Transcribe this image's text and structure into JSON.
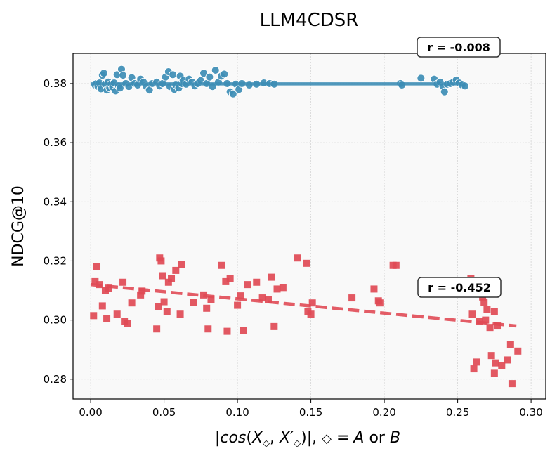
{
  "chart_data": {
    "type": "scatter",
    "title": "LLM4CDSR",
    "ylabel": "NDCG@10",
    "xlabel": {
      "prefix": "|",
      "func": "cos",
      "open": "(",
      "x1": "X",
      "sub1": "◇",
      "comma": ", ",
      "x2": "X′",
      "sub2": "◇",
      "close": ")|,",
      "spacer": " ",
      "diamond": "◇",
      "eq": " =",
      "a": "A",
      "or": " or ",
      "b": "B"
    },
    "xlim": [
      -0.012,
      0.31
    ],
    "ylim": [
      0.2733,
      0.3902
    ],
    "xticks": [
      0.0,
      0.05,
      0.1,
      0.15,
      0.2,
      0.25,
      0.3
    ],
    "xtick_labels": [
      "0.00",
      "0.05",
      "0.10",
      "0.15",
      "0.20",
      "0.25",
      "0.30"
    ],
    "yticks": [
      0.28,
      0.3,
      0.32,
      0.34,
      0.36,
      0.38
    ],
    "ytick_labels": [
      "0.28",
      "0.30",
      "0.32",
      "0.34",
      "0.36",
      "0.38"
    ],
    "grid": true,
    "series": [
      {
        "name": "blue",
        "color": "#3d8db5",
        "marker": "circle",
        "trend": {
          "x": [
            0.0,
            0.255
          ],
          "y": [
            0.3799,
            0.3799
          ],
          "style": "solid"
        },
        "annotation": "r = -0.008",
        "points": [
          [
            0.003,
            0.3795
          ],
          [
            0.004,
            0.38
          ],
          [
            0.005,
            0.379
          ],
          [
            0.006,
            0.3802
          ],
          [
            0.007,
            0.3782
          ],
          [
            0.008,
            0.3828
          ],
          [
            0.009,
            0.3835
          ],
          [
            0.01,
            0.3798
          ],
          [
            0.011,
            0.3778
          ],
          [
            0.012,
            0.3805
          ],
          [
            0.013,
            0.3785
          ],
          [
            0.014,
            0.3798
          ],
          [
            0.015,
            0.3788
          ],
          [
            0.016,
            0.3802
          ],
          [
            0.017,
            0.3775
          ],
          [
            0.018,
            0.383
          ],
          [
            0.019,
            0.3792
          ],
          [
            0.02,
            0.3785
          ],
          [
            0.021,
            0.3848
          ],
          [
            0.022,
            0.3828
          ],
          [
            0.024,
            0.38
          ],
          [
            0.026,
            0.379
          ],
          [
            0.028,
            0.382
          ],
          [
            0.03,
            0.38
          ],
          [
            0.032,
            0.3795
          ],
          [
            0.034,
            0.3815
          ],
          [
            0.036,
            0.3805
          ],
          [
            0.038,
            0.379
          ],
          [
            0.04,
            0.3778
          ],
          [
            0.042,
            0.38
          ],
          [
            0.045,
            0.3805
          ],
          [
            0.047,
            0.3792
          ],
          [
            0.049,
            0.38
          ],
          [
            0.051,
            0.3822
          ],
          [
            0.053,
            0.384
          ],
          [
            0.054,
            0.379
          ],
          [
            0.056,
            0.383
          ],
          [
            0.057,
            0.378
          ],
          [
            0.058,
            0.3795
          ],
          [
            0.06,
            0.3785
          ],
          [
            0.061,
            0.3825
          ],
          [
            0.062,
            0.38
          ],
          [
            0.063,
            0.381
          ],
          [
            0.065,
            0.3798
          ],
          [
            0.067,
            0.3815
          ],
          [
            0.069,
            0.3805
          ],
          [
            0.071,
            0.3792
          ],
          [
            0.073,
            0.38
          ],
          [
            0.075,
            0.381
          ],
          [
            0.077,
            0.3835
          ],
          [
            0.079,
            0.38
          ],
          [
            0.081,
            0.3822
          ],
          [
            0.083,
            0.379
          ],
          [
            0.085,
            0.3845
          ],
          [
            0.087,
            0.3805
          ],
          [
            0.089,
            0.3825
          ],
          [
            0.091,
            0.3832
          ],
          [
            0.093,
            0.38
          ],
          [
            0.095,
            0.3772
          ],
          [
            0.097,
            0.3765
          ],
          [
            0.099,
            0.3798
          ],
          [
            0.101,
            0.378
          ],
          [
            0.103,
            0.38
          ],
          [
            0.108,
            0.3795
          ],
          [
            0.113,
            0.3798
          ],
          [
            0.118,
            0.3802
          ],
          [
            0.122,
            0.38
          ],
          [
            0.125,
            0.3798
          ],
          [
            0.211,
            0.38
          ],
          [
            0.212,
            0.3795
          ],
          [
            0.225,
            0.3818
          ],
          [
            0.234,
            0.3815
          ],
          [
            0.236,
            0.3798
          ],
          [
            0.238,
            0.3805
          ],
          [
            0.24,
            0.379
          ],
          [
            0.241,
            0.3772
          ],
          [
            0.243,
            0.3798
          ],
          [
            0.245,
            0.38
          ],
          [
            0.247,
            0.3805
          ],
          [
            0.249,
            0.3812
          ],
          [
            0.251,
            0.3802
          ],
          [
            0.253,
            0.3795
          ],
          [
            0.255,
            0.3792
          ]
        ]
      },
      {
        "name": "red",
        "color": "#e04a55",
        "marker": "square",
        "trend": {
          "x": [
            0.0,
            0.29
          ],
          "y": [
            0.312,
            0.298
          ],
          "style": "dashed"
        },
        "annotation": "r = -0.452",
        "points": [
          [
            0.002,
            0.3015
          ],
          [
            0.003,
            0.313
          ],
          [
            0.004,
            0.318
          ],
          [
            0.006,
            0.312
          ],
          [
            0.008,
            0.3048
          ],
          [
            0.01,
            0.31
          ],
          [
            0.011,
            0.3005
          ],
          [
            0.012,
            0.3108
          ],
          [
            0.018,
            0.302
          ],
          [
            0.022,
            0.3128
          ],
          [
            0.023,
            0.2995
          ],
          [
            0.025,
            0.2988
          ],
          [
            0.028,
            0.3058
          ],
          [
            0.034,
            0.3085
          ],
          [
            0.035,
            0.3098
          ],
          [
            0.045,
            0.297
          ],
          [
            0.046,
            0.3045
          ],
          [
            0.047,
            0.321
          ],
          [
            0.048,
            0.32
          ],
          [
            0.049,
            0.315
          ],
          [
            0.05,
            0.3062
          ],
          [
            0.052,
            0.303
          ],
          [
            0.053,
            0.3128
          ],
          [
            0.055,
            0.314
          ],
          [
            0.058,
            0.3168
          ],
          [
            0.061,
            0.302
          ],
          [
            0.062,
            0.3188
          ],
          [
            0.07,
            0.306
          ],
          [
            0.077,
            0.3085
          ],
          [
            0.079,
            0.304
          ],
          [
            0.08,
            0.297
          ],
          [
            0.082,
            0.307
          ],
          [
            0.089,
            0.3185
          ],
          [
            0.092,
            0.313
          ],
          [
            0.093,
            0.2962
          ],
          [
            0.095,
            0.314
          ],
          [
            0.1,
            0.305
          ],
          [
            0.102,
            0.3082
          ],
          [
            0.104,
            0.2965
          ],
          [
            0.107,
            0.312
          ],
          [
            0.113,
            0.3128
          ],
          [
            0.117,
            0.3075
          ],
          [
            0.121,
            0.3068
          ],
          [
            0.123,
            0.3145
          ],
          [
            0.125,
            0.2978
          ],
          [
            0.127,
            0.3105
          ],
          [
            0.131,
            0.311
          ],
          [
            0.141,
            0.321
          ],
          [
            0.147,
            0.3192
          ],
          [
            0.148,
            0.303
          ],
          [
            0.15,
            0.302
          ],
          [
            0.151,
            0.3058
          ],
          [
            0.178,
            0.3075
          ],
          [
            0.193,
            0.3105
          ],
          [
            0.196,
            0.3065
          ],
          [
            0.197,
            0.3058
          ],
          [
            0.206,
            0.3185
          ],
          [
            0.208,
            0.3185
          ],
          [
            0.259,
            0.314
          ],
          [
            0.26,
            0.302
          ],
          [
            0.261,
            0.2835
          ],
          [
            0.263,
            0.2858
          ],
          [
            0.265,
            0.2995
          ],
          [
            0.267,
            0.3078
          ],
          [
            0.268,
            0.306
          ],
          [
            0.269,
            0.3
          ],
          [
            0.27,
            0.3035
          ],
          [
            0.272,
            0.2975
          ],
          [
            0.273,
            0.288
          ],
          [
            0.275,
            0.3028
          ],
          [
            0.275,
            0.282
          ],
          [
            0.276,
            0.2855
          ],
          [
            0.277,
            0.298
          ],
          [
            0.28,
            0.2845
          ],
          [
            0.284,
            0.2865
          ],
          [
            0.286,
            0.2918
          ],
          [
            0.287,
            0.2785
          ],
          [
            0.291,
            0.2895
          ]
        ]
      }
    ]
  }
}
